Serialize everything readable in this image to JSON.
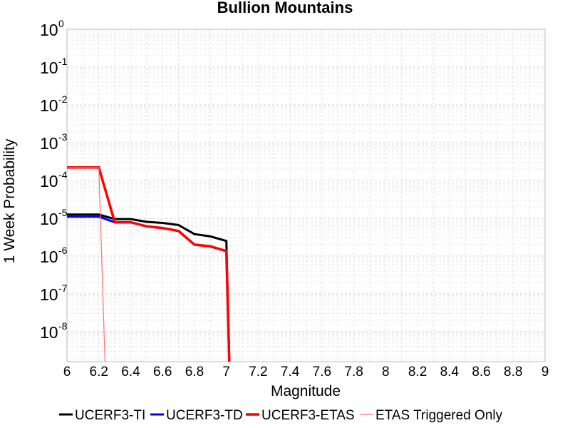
{
  "chart_data": {
    "type": "line",
    "title": "Bullion Mountains",
    "xlabel": "Magnitude",
    "ylabel": "1 Week Probability",
    "xlim": [
      6,
      9
    ],
    "ylim": [
      1.6e-09,
      1
    ],
    "yscale": "log",
    "grid": true,
    "legend_position": "bottom",
    "x_ticks": [
      "6",
      "6.2",
      "6.4",
      "6.6",
      "6.8",
      "7",
      "7.2",
      "7.4",
      "7.6",
      "7.8",
      "8",
      "8.2",
      "8.4",
      "8.6",
      "8.8",
      "9"
    ],
    "y_ticks": [
      {
        "base": "10",
        "exp": "0",
        "value": 1
      },
      {
        "base": "10",
        "exp": "-1",
        "value": 0.1
      },
      {
        "base": "10",
        "exp": "-2",
        "value": 0.01
      },
      {
        "base": "10",
        "exp": "-3",
        "value": 0.001
      },
      {
        "base": "10",
        "exp": "-4",
        "value": 0.0001
      },
      {
        "base": "10",
        "exp": "-5",
        "value": 1e-05
      },
      {
        "base": "10",
        "exp": "-6",
        "value": 1e-06
      },
      {
        "base": "10",
        "exp": "-7",
        "value": 1e-07
      },
      {
        "base": "10",
        "exp": "-8",
        "value": 1e-08
      }
    ],
    "series": [
      {
        "name": "UCERF3-TI",
        "color": "#000000",
        "width": 3,
        "x": [
          6.0,
          6.1,
          6.2,
          6.3,
          6.4,
          6.5,
          6.6,
          6.7,
          6.8,
          6.9,
          7.0,
          7.02
        ],
        "y": [
          1.25e-05,
          1.25e-05,
          1.25e-05,
          9.5e-06,
          9.5e-06,
          8e-06,
          7.5e-06,
          6.6e-06,
          3.8e-06,
          3.3e-06,
          2.5e-06,
          1e-09
        ]
      },
      {
        "name": "UCERF3-TD",
        "color": "#0000ff",
        "width": 3,
        "x": [
          6.0,
          6.1,
          6.2,
          6.3,
          6.4,
          6.5,
          6.6,
          6.7,
          6.8,
          6.9,
          7.0,
          7.02
        ],
        "y": [
          1.1e-05,
          1.1e-05,
          1.1e-05,
          7.8e-06,
          7.8e-06,
          6.1e-06,
          5.5e-06,
          4.6e-06,
          2e-06,
          1.8e-06,
          1.35e-06,
          1e-09
        ]
      },
      {
        "name": "UCERF3-ETAS",
        "color": "#ff0000",
        "width": 3.5,
        "x": [
          6.0,
          6.1,
          6.2,
          6.3,
          6.4,
          6.5,
          6.6,
          6.7,
          6.8,
          6.9,
          7.0,
          7.02
        ],
        "y": [
          0.00022,
          0.00022,
          0.00022,
          7.8e-06,
          7.8e-06,
          6.1e-06,
          5.5e-06,
          4.6e-06,
          2e-06,
          1.8e-06,
          1.35e-06,
          1e-09
        ]
      },
      {
        "name": "ETAS Triggered Only",
        "color": "#ff7070",
        "width": 1.2,
        "x": [
          6.0,
          6.1,
          6.2,
          6.24
        ],
        "y": [
          0.00022,
          0.00022,
          0.00022,
          1e-09
        ]
      }
    ]
  }
}
